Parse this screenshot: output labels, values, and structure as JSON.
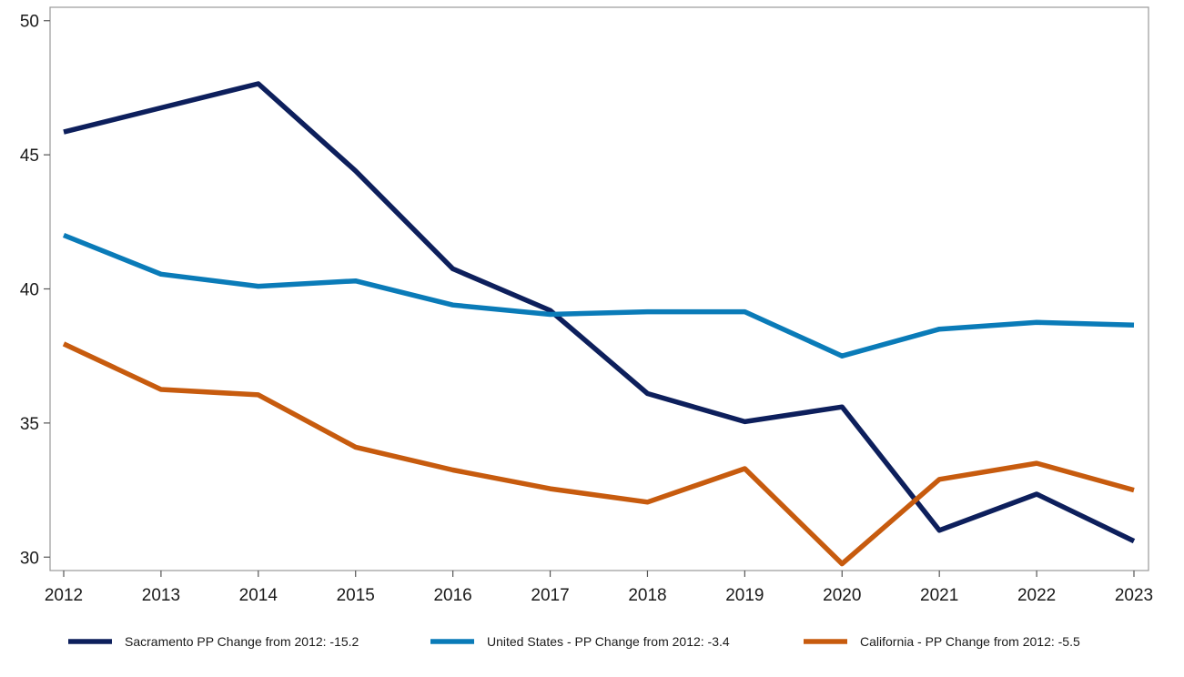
{
  "chart_data": {
    "type": "line",
    "title": "",
    "xlabel": "",
    "ylabel": "",
    "x": [
      2012,
      2013,
      2014,
      2015,
      2016,
      2017,
      2018,
      2019,
      2020,
      2021,
      2022,
      2023
    ],
    "ylim": [
      29.5,
      50.5
    ],
    "yticks": [
      30,
      35,
      40,
      45,
      50
    ],
    "grid": false,
    "legend_position": "bottom",
    "series": [
      {
        "name": "Sacramento PP Change from 2012: -15.2",
        "color": "#0d1f5c",
        "values": [
          45.85,
          46.75,
          47.65,
          44.4,
          40.75,
          39.2,
          36.1,
          35.05,
          35.6,
          31.0,
          32.35,
          30.6
        ]
      },
      {
        "name": "United States - PP Change from 2012: -3.4",
        "color": "#0a7bb8",
        "values": [
          42.0,
          40.55,
          40.1,
          40.3,
          39.4,
          39.05,
          39.15,
          39.15,
          37.5,
          38.5,
          38.75,
          38.65
        ]
      },
      {
        "name": "California - PP Change from 2012: -5.5",
        "color": "#c75b0e",
        "values": [
          37.95,
          36.25,
          36.05,
          34.1,
          33.25,
          32.55,
          32.05,
          33.3,
          29.75,
          32.9,
          33.5,
          32.5
        ]
      }
    ]
  }
}
